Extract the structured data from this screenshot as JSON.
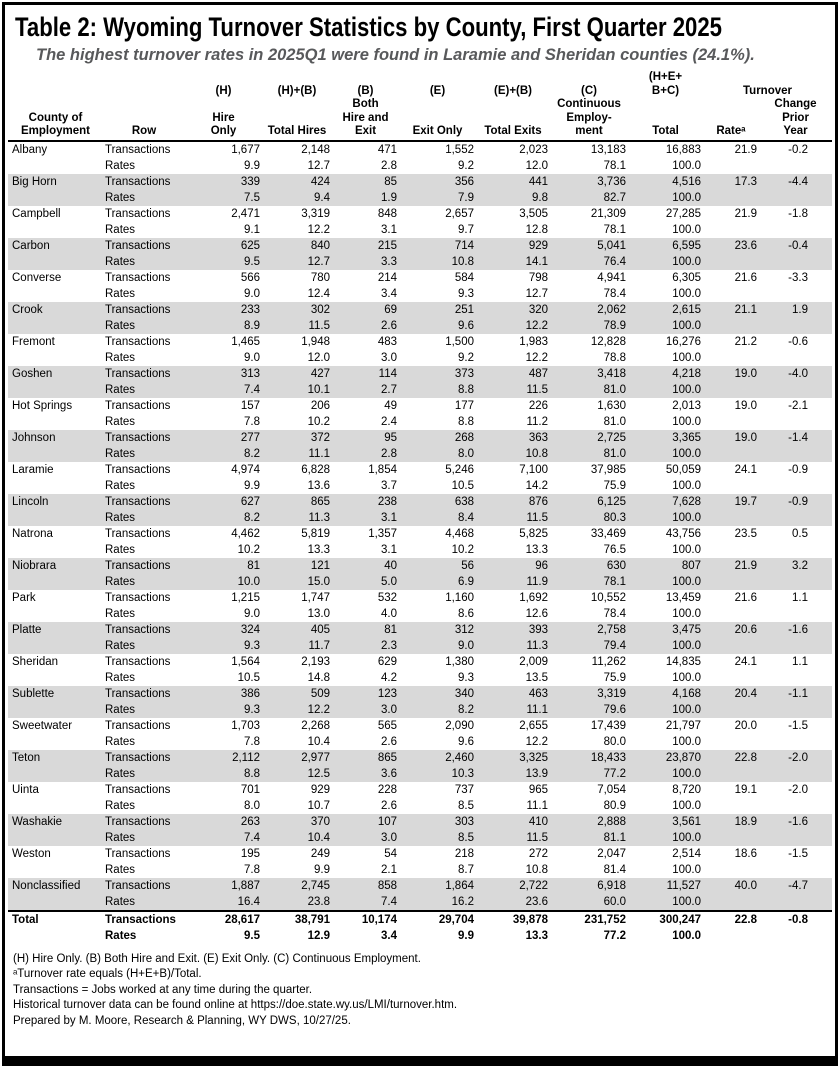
{
  "title": "Table 2: Wyoming Turnover Statistics by County, First Quarter 2025",
  "subtitle": "The highest turnover rates in 2025Q1 were found in Laramie and Sheridan counties (24.1%).",
  "colors": {
    "row_shade": "#d9d9d9",
    "subtitle_text": "#58595b"
  },
  "table": {
    "header_rows": [
      [
        "",
        "",
        "",
        "",
        "",
        "",
        "",
        "",
        "(H+E+",
        "",
        ""
      ],
      [
        "",
        "",
        "(H)",
        "(H)+(B)",
        "(B)",
        "(E)",
        "(E)+(B)",
        "(C)",
        "B+C)",
        {
          "text": "Turnover",
          "colspan": 2
        }
      ],
      [
        "",
        "",
        "",
        "",
        "Both",
        "",
        "",
        "Continuous",
        "",
        "",
        "Change"
      ],
      [
        "County of",
        "",
        "Hire",
        "",
        "Hire and",
        "",
        "",
        "Employ-",
        "",
        "",
        "Prior"
      ],
      [
        "Employment",
        "Row",
        "Only",
        "Total Hires",
        "Exit",
        "Exit Only",
        "Total Exits",
        "ment",
        "Total",
        "Rateᵃ",
        "Year"
      ]
    ],
    "row_labels": [
      "Transactions",
      "Rates"
    ],
    "counties": [
      {
        "name": "Albany",
        "transactions": [
          "1,677",
          "2,148",
          "471",
          "1,552",
          "2,023",
          "13,183",
          "16,883"
        ],
        "rates": [
          "9.9",
          "12.7",
          "2.8",
          "9.2",
          "12.0",
          "78.1",
          "100.0"
        ],
        "rate": "21.9",
        "change": "-0.2"
      },
      {
        "name": "Big Horn",
        "transactions": [
          "339",
          "424",
          "85",
          "356",
          "441",
          "3,736",
          "4,516"
        ],
        "rates": [
          "7.5",
          "9.4",
          "1.9",
          "7.9",
          "9.8",
          "82.7",
          "100.0"
        ],
        "rate": "17.3",
        "change": "-4.4"
      },
      {
        "name": "Campbell",
        "transactions": [
          "2,471",
          "3,319",
          "848",
          "2,657",
          "3,505",
          "21,309",
          "27,285"
        ],
        "rates": [
          "9.1",
          "12.2",
          "3.1",
          "9.7",
          "12.8",
          "78.1",
          "100.0"
        ],
        "rate": "21.9",
        "change": "-1.8"
      },
      {
        "name": "Carbon",
        "transactions": [
          "625",
          "840",
          "215",
          "714",
          "929",
          "5,041",
          "6,595"
        ],
        "rates": [
          "9.5",
          "12.7",
          "3.3",
          "10.8",
          "14.1",
          "76.4",
          "100.0"
        ],
        "rate": "23.6",
        "change": "-0.4"
      },
      {
        "name": "Converse",
        "transactions": [
          "566",
          "780",
          "214",
          "584",
          "798",
          "4,941",
          "6,305"
        ],
        "rates": [
          "9.0",
          "12.4",
          "3.4",
          "9.3",
          "12.7",
          "78.4",
          "100.0"
        ],
        "rate": "21.6",
        "change": "-3.3"
      },
      {
        "name": "Crook",
        "transactions": [
          "233",
          "302",
          "69",
          "251",
          "320",
          "2,062",
          "2,615"
        ],
        "rates": [
          "8.9",
          "11.5",
          "2.6",
          "9.6",
          "12.2",
          "78.9",
          "100.0"
        ],
        "rate": "21.1",
        "change": "1.9"
      },
      {
        "name": "Fremont",
        "transactions": [
          "1,465",
          "1,948",
          "483",
          "1,500",
          "1,983",
          "12,828",
          "16,276"
        ],
        "rates": [
          "9.0",
          "12.0",
          "3.0",
          "9.2",
          "12.2",
          "78.8",
          "100.0"
        ],
        "rate": "21.2",
        "change": "-0.6"
      },
      {
        "name": "Goshen",
        "transactions": [
          "313",
          "427",
          "114",
          "373",
          "487",
          "3,418",
          "4,218"
        ],
        "rates": [
          "7.4",
          "10.1",
          "2.7",
          "8.8",
          "11.5",
          "81.0",
          "100.0"
        ],
        "rate": "19.0",
        "change": "-4.0"
      },
      {
        "name": "Hot Springs",
        "transactions": [
          "157",
          "206",
          "49",
          "177",
          "226",
          "1,630",
          "2,013"
        ],
        "rates": [
          "7.8",
          "10.2",
          "2.4",
          "8.8",
          "11.2",
          "81.0",
          "100.0"
        ],
        "rate": "19.0",
        "change": "-2.1"
      },
      {
        "name": "Johnson",
        "transactions": [
          "277",
          "372",
          "95",
          "268",
          "363",
          "2,725",
          "3,365"
        ],
        "rates": [
          "8.2",
          "11.1",
          "2.8",
          "8.0",
          "10.8",
          "81.0",
          "100.0"
        ],
        "rate": "19.0",
        "change": "-1.4"
      },
      {
        "name": "Laramie",
        "transactions": [
          "4,974",
          "6,828",
          "1,854",
          "5,246",
          "7,100",
          "37,985",
          "50,059"
        ],
        "rates": [
          "9.9",
          "13.6",
          "3.7",
          "10.5",
          "14.2",
          "75.9",
          "100.0"
        ],
        "rate": "24.1",
        "change": "-0.9"
      },
      {
        "name": "Lincoln",
        "transactions": [
          "627",
          "865",
          "238",
          "638",
          "876",
          "6,125",
          "7,628"
        ],
        "rates": [
          "8.2",
          "11.3",
          "3.1",
          "8.4",
          "11.5",
          "80.3",
          "100.0"
        ],
        "rate": "19.7",
        "change": "-0.9"
      },
      {
        "name": "Natrona",
        "transactions": [
          "4,462",
          "5,819",
          "1,357",
          "4,468",
          "5,825",
          "33,469",
          "43,756"
        ],
        "rates": [
          "10.2",
          "13.3",
          "3.1",
          "10.2",
          "13.3",
          "76.5",
          "100.0"
        ],
        "rate": "23.5",
        "change": "0.5"
      },
      {
        "name": "Niobrara",
        "transactions": [
          "81",
          "121",
          "40",
          "56",
          "96",
          "630",
          "807"
        ],
        "rates": [
          "10.0",
          "15.0",
          "5.0",
          "6.9",
          "11.9",
          "78.1",
          "100.0"
        ],
        "rate": "21.9",
        "change": "3.2"
      },
      {
        "name": "Park",
        "transactions": [
          "1,215",
          "1,747",
          "532",
          "1,160",
          "1,692",
          "10,552",
          "13,459"
        ],
        "rates": [
          "9.0",
          "13.0",
          "4.0",
          "8.6",
          "12.6",
          "78.4",
          "100.0"
        ],
        "rate": "21.6",
        "change": "1.1"
      },
      {
        "name": "Platte",
        "transactions": [
          "324",
          "405",
          "81",
          "312",
          "393",
          "2,758",
          "3,475"
        ],
        "rates": [
          "9.3",
          "11.7",
          "2.3",
          "9.0",
          "11.3",
          "79.4",
          "100.0"
        ],
        "rate": "20.6",
        "change": "-1.6"
      },
      {
        "name": "Sheridan",
        "transactions": [
          "1,564",
          "2,193",
          "629",
          "1,380",
          "2,009",
          "11,262",
          "14,835"
        ],
        "rates": [
          "10.5",
          "14.8",
          "4.2",
          "9.3",
          "13.5",
          "75.9",
          "100.0"
        ],
        "rate": "24.1",
        "change": "1.1"
      },
      {
        "name": "Sublette",
        "transactions": [
          "386",
          "509",
          "123",
          "340",
          "463",
          "3,319",
          "4,168"
        ],
        "rates": [
          "9.3",
          "12.2",
          "3.0",
          "8.2",
          "11.1",
          "79.6",
          "100.0"
        ],
        "rate": "20.4",
        "change": "-1.1"
      },
      {
        "name": "Sweetwater",
        "transactions": [
          "1,703",
          "2,268",
          "565",
          "2,090",
          "2,655",
          "17,439",
          "21,797"
        ],
        "rates": [
          "7.8",
          "10.4",
          "2.6",
          "9.6",
          "12.2",
          "80.0",
          "100.0"
        ],
        "rate": "20.0",
        "change": "-1.5"
      },
      {
        "name": "Teton",
        "transactions": [
          "2,112",
          "2,977",
          "865",
          "2,460",
          "3,325",
          "18,433",
          "23,870"
        ],
        "rates": [
          "8.8",
          "12.5",
          "3.6",
          "10.3",
          "13.9",
          "77.2",
          "100.0"
        ],
        "rate": "22.8",
        "change": "-2.0"
      },
      {
        "name": "Uinta",
        "transactions": [
          "701",
          "929",
          "228",
          "737",
          "965",
          "7,054",
          "8,720"
        ],
        "rates": [
          "8.0",
          "10.7",
          "2.6",
          "8.5",
          "11.1",
          "80.9",
          "100.0"
        ],
        "rate": "19.1",
        "change": "-2.0"
      },
      {
        "name": "Washakie",
        "transactions": [
          "263",
          "370",
          "107",
          "303",
          "410",
          "2,888",
          "3,561"
        ],
        "rates": [
          "7.4",
          "10.4",
          "3.0",
          "8.5",
          "11.5",
          "81.1",
          "100.0"
        ],
        "rate": "18.9",
        "change": "-1.6"
      },
      {
        "name": "Weston",
        "transactions": [
          "195",
          "249",
          "54",
          "218",
          "272",
          "2,047",
          "2,514"
        ],
        "rates": [
          "7.8",
          "9.9",
          "2.1",
          "8.7",
          "10.8",
          "81.4",
          "100.0"
        ],
        "rate": "18.6",
        "change": "-1.5"
      },
      {
        "name": "Nonclassified",
        "transactions": [
          "1,887",
          "2,745",
          "858",
          "1,864",
          "2,722",
          "6,918",
          "11,527"
        ],
        "rates": [
          "16.4",
          "23.8",
          "7.4",
          "16.2",
          "23.6",
          "60.0",
          "100.0"
        ],
        "rate": "40.0",
        "change": "-4.7"
      }
    ],
    "total": {
      "name": "Total",
      "transactions": [
        "28,617",
        "38,791",
        "10,174",
        "29,704",
        "39,878",
        "231,752",
        "300,247"
      ],
      "rates": [
        "9.5",
        "12.9",
        "3.4",
        "9.9",
        "13.3",
        "77.2",
        "100.0"
      ],
      "rate": "22.8",
      "change": "-0.8"
    }
  },
  "footnotes": [
    "(H) Hire Only. (B) Both Hire and Exit. (E) Exit Only. (C) Continuous Employment.",
    "ᵃTurnover rate equals (H+E+B)/Total.",
    "Transactions = Jobs worked at any time during the quarter.",
    "Historical turnover data can be found online at https://doe.state.wy.us/LMI/turnover.htm.",
    "Prepared by M. Moore, Research & Planning, WY DWS, 10/27/25."
  ]
}
